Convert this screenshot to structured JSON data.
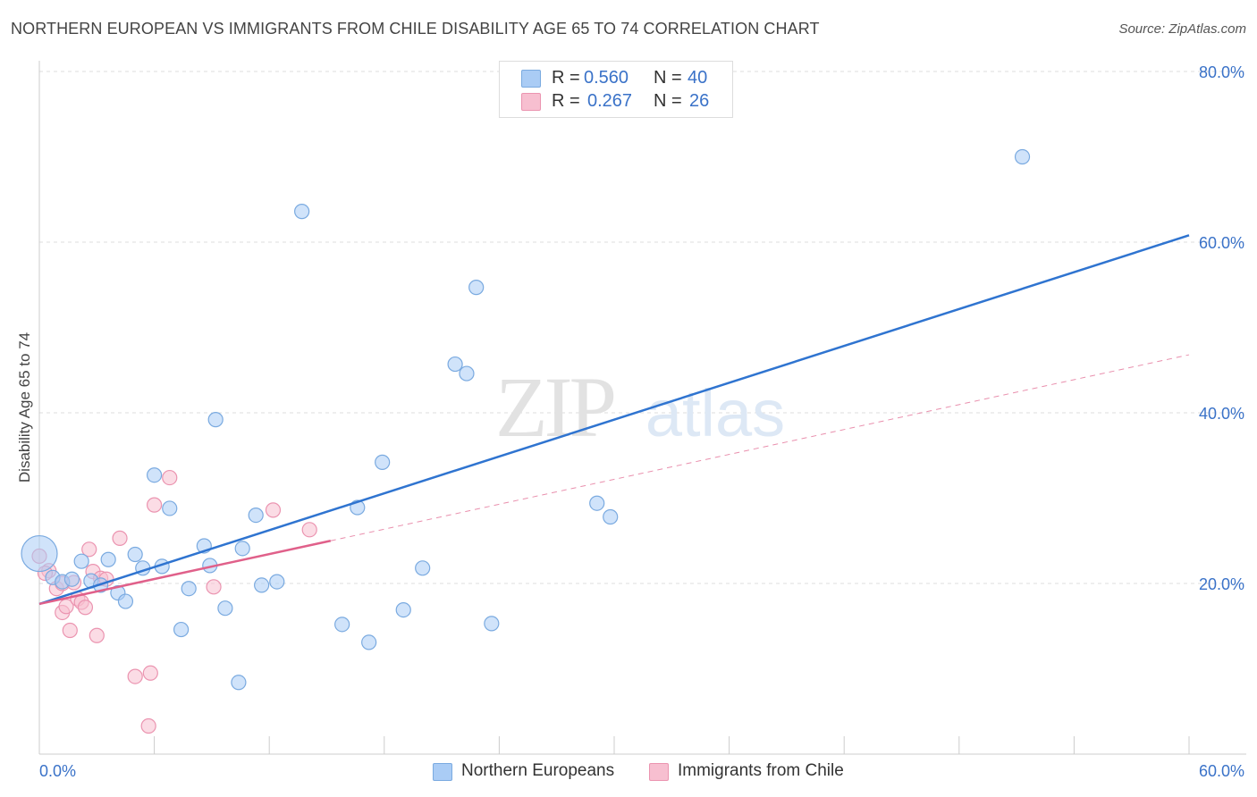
{
  "title": "NORTHERN EUROPEAN VS IMMIGRANTS FROM CHILE DISABILITY AGE 65 TO 74 CORRELATION CHART",
  "source": "Source: ZipAtlas.com",
  "watermark": {
    "zip": "ZIP",
    "atlas": "atlas"
  },
  "legend_top": {
    "r_label": "R =",
    "n_label": "N =",
    "rows": [
      {
        "r": "0.560",
        "n": "40"
      },
      {
        "r": "0.267",
        "n": "26"
      }
    ]
  },
  "legend_bottom": [
    "Northern Europeans",
    "Immigrants from Chile"
  ],
  "colors": {
    "blue_fill": "#aaccf5",
    "blue_stroke": "#7aaae0",
    "blue_line": "#2f74d0",
    "pink_fill": "#f7bfd0",
    "pink_stroke": "#eb94b0",
    "pink_line": "#e0608a",
    "axis_text": "#3a72c8",
    "grid": "#dddddd"
  },
  "chart_data": {
    "type": "scatter",
    "title": "NORTHERN EUROPEAN VS IMMIGRANTS FROM CHILE DISABILITY AGE 65 TO 74 CORRELATION CHART",
    "xlabel": "",
    "ylabel": "Disability Age 65 to 74",
    "xlim": [
      0,
      60
    ],
    "ylim": [
      0,
      80
    ],
    "x_tick_labels": [
      "0.0%",
      "60.0%"
    ],
    "y_ticks": [
      20,
      40,
      60,
      80
    ],
    "y_tick_labels": [
      "20.0%",
      "40.0%",
      "60.0%",
      "80.0%"
    ],
    "grid": true,
    "series": [
      {
        "name": "Northern Europeans",
        "R": 0.56,
        "N": 40,
        "trend": {
          "x": [
            0,
            60
          ],
          "y": [
            17.6,
            60.8
          ],
          "style": "solid"
        },
        "points": [
          [
            0.0,
            23.5,
            "large"
          ],
          [
            0.7,
            20.7
          ],
          [
            1.2,
            20.2
          ],
          [
            1.7,
            20.5
          ],
          [
            2.2,
            22.6
          ],
          [
            2.7,
            20.3
          ],
          [
            3.2,
            19.8
          ],
          [
            3.6,
            22.8
          ],
          [
            4.1,
            18.9
          ],
          [
            4.5,
            17.9
          ],
          [
            5.0,
            23.4
          ],
          [
            5.4,
            21.8
          ],
          [
            6.0,
            32.7
          ],
          [
            6.4,
            22.0
          ],
          [
            6.8,
            28.8
          ],
          [
            7.4,
            14.6
          ],
          [
            7.8,
            19.4
          ],
          [
            8.6,
            24.4
          ],
          [
            8.9,
            22.1
          ],
          [
            9.2,
            39.2
          ],
          [
            9.7,
            17.1
          ],
          [
            10.4,
            8.4
          ],
          [
            10.6,
            24.1
          ],
          [
            11.3,
            28.0
          ],
          [
            11.6,
            19.8
          ],
          [
            12.4,
            20.2
          ],
          [
            13.7,
            63.6
          ],
          [
            15.8,
            15.2
          ],
          [
            16.6,
            28.9
          ],
          [
            17.2,
            13.1
          ],
          [
            17.9,
            34.2
          ],
          [
            19.0,
            16.9
          ],
          [
            20.0,
            21.8
          ],
          [
            21.7,
            45.7
          ],
          [
            22.3,
            44.6
          ],
          [
            22.8,
            54.7
          ],
          [
            23.6,
            15.3
          ],
          [
            29.1,
            29.4
          ],
          [
            29.8,
            27.8
          ],
          [
            51.3,
            70.0
          ]
        ]
      },
      {
        "name": "Immigrants from Chile",
        "R": 0.267,
        "N": 26,
        "trend_solid": {
          "x": [
            0,
            15.2
          ],
          "y": [
            17.6,
            25.0
          ]
        },
        "trend_dashed": {
          "x": [
            15.2,
            60
          ],
          "y": [
            25.0,
            46.8
          ]
        },
        "points": [
          [
            0.0,
            23.2
          ],
          [
            0.5,
            21.5
          ],
          [
            0.9,
            19.4
          ],
          [
            1.2,
            20.0
          ],
          [
            1.2,
            16.6
          ],
          [
            1.4,
            17.3
          ],
          [
            1.6,
            14.5
          ],
          [
            1.8,
            20.1
          ],
          [
            2.0,
            18.2
          ],
          [
            2.2,
            17.8
          ],
          [
            2.4,
            17.2
          ],
          [
            2.6,
            24.0
          ],
          [
            2.8,
            21.4
          ],
          [
            3.0,
            13.9
          ],
          [
            3.2,
            20.6
          ],
          [
            3.5,
            20.5
          ],
          [
            4.2,
            25.3
          ],
          [
            5.0,
            9.1
          ],
          [
            5.7,
            3.3
          ],
          [
            5.8,
            9.5
          ],
          [
            6.0,
            29.2
          ],
          [
            6.8,
            32.4
          ],
          [
            9.1,
            19.6
          ],
          [
            12.2,
            28.6
          ],
          [
            14.1,
            26.3
          ],
          [
            0.3,
            21.2
          ]
        ]
      }
    ]
  }
}
